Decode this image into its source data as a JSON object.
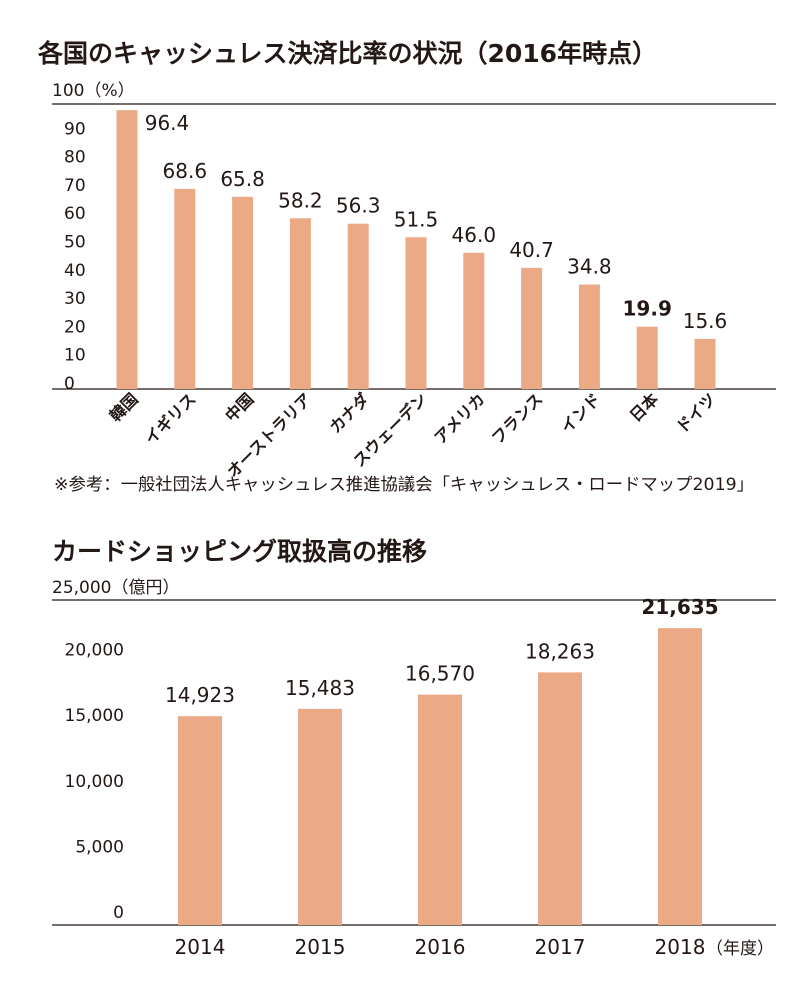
{
  "chart_data": [
    {
      "type": "bar",
      "title": "各国のキャッシュレス決済比率の状況（2016年時点）",
      "ylabel": "100（%）",
      "ylim": [
        0,
        100
      ],
      "yticks": [
        "0",
        "10",
        "20",
        "30",
        "40",
        "50",
        "60",
        "70",
        "80",
        "90"
      ],
      "categories": [
        "韓国",
        "イギリス",
        "中国",
        "オーストラリア",
        "カナダ",
        "スウェーデン",
        "アメリカ",
        "フランス",
        "インド",
        "日本",
        "ドイツ"
      ],
      "values": [
        96.4,
        68.6,
        65.8,
        58.2,
        56.3,
        51.5,
        46.0,
        40.7,
        34.8,
        19.9,
        15.6
      ],
      "value_labels": [
        "96.4",
        "68.6",
        "65.8",
        "58.2",
        "56.3",
        "51.5",
        "46.0",
        "40.7",
        "34.8",
        "19.9",
        "15.6"
      ],
      "highlight": "日本",
      "bar_color": "#eba985",
      "source": "※参考：一般社団法人キャッシュレス推進協議会「キャッシュレス・ロードマップ2019」"
    },
    {
      "type": "bar",
      "title": "カードショッピング取扱高の推移",
      "ylabel": "25,000（億円）",
      "xlabel": "（年度）",
      "ylim": [
        0,
        25000
      ],
      "yticks": [
        "0",
        "5,000",
        "10,000",
        "15,000",
        "20,000"
      ],
      "categories": [
        "2014",
        "2015",
        "2016",
        "2017",
        "2018"
      ],
      "values": [
        14923,
        15483,
        16570,
        18263,
        21635
      ],
      "value_labels": [
        "14,923",
        "15,483",
        "16,570",
        "18,263",
        "21,635"
      ],
      "highlight": "2018",
      "bar_color": "#eba985"
    }
  ]
}
